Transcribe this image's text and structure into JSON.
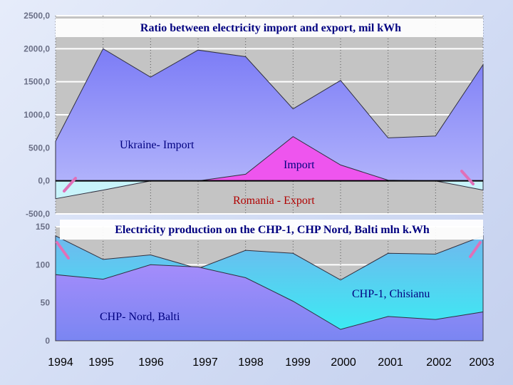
{
  "colors": {
    "ukraine_import": "#8c8cfb",
    "moldova_import": "#ee55ee",
    "romania_export": "#c8f4fb",
    "chp1_chisinau": "#5ccaec",
    "chp_nord_balti": "#9a8cfb",
    "arrow": "#e070b8",
    "panel_bg": "#c4c4c4",
    "title_bar_bg": "#ffffff"
  },
  "years": [
    "1994",
    "1995",
    "1996",
    "1997",
    "1998",
    "1999",
    "2000",
    "2001",
    "2002",
    "2003"
  ],
  "chart_data": [
    {
      "type": "area",
      "title": "Ratio between electricity import and export, mil kWh",
      "xlabel": "",
      "ylabel": "",
      "ylim": [
        -500,
        2500
      ],
      "yticks": [
        "2500,0",
        "2000,0",
        "1500,0",
        "1000,0",
        "500,0",
        "0,0",
        "-500,0"
      ],
      "grid": true,
      "x": [
        1994,
        1995,
        1996,
        1997,
        1998,
        1999,
        2000,
        2001,
        2002,
        2003
      ],
      "series": [
        {
          "name": "Ukraine- Import",
          "values": [
            600,
            2000,
            1570,
            1980,
            1880,
            1090,
            1520,
            650,
            680,
            1760
          ]
        },
        {
          "name": "Import",
          "values": [
            0,
            0,
            0,
            0,
            100,
            670,
            240,
            10,
            0,
            0
          ]
        },
        {
          "name": "Romania - Export",
          "values": [
            -270,
            -140,
            0,
            0,
            0,
            0,
            0,
            0,
            0,
            -140
          ]
        }
      ]
    },
    {
      "type": "area",
      "title": "Electricity production  on the CHP-1,   CHP Nord, Balti mln k.Wh",
      "xlabel": "",
      "ylabel": "",
      "ylim": [
        0,
        150
      ],
      "yticks": [
        "150",
        "100",
        "50",
        "0"
      ],
      "grid": true,
      "x": [
        1994,
        1995,
        1996,
        1997,
        1998,
        1999,
        2000,
        2001,
        2002,
        2003
      ],
      "series": [
        {
          "name": "CHP-1,  Chisianu",
          "values": [
            138,
            107,
            113,
            95,
            119,
            115,
            80,
            115,
            114,
            138
          ]
        },
        {
          "name": "CHP- Nord, Balti",
          "values": [
            87,
            81,
            100,
            97,
            83,
            52,
            15,
            32,
            28,
            38
          ]
        }
      ]
    }
  ]
}
